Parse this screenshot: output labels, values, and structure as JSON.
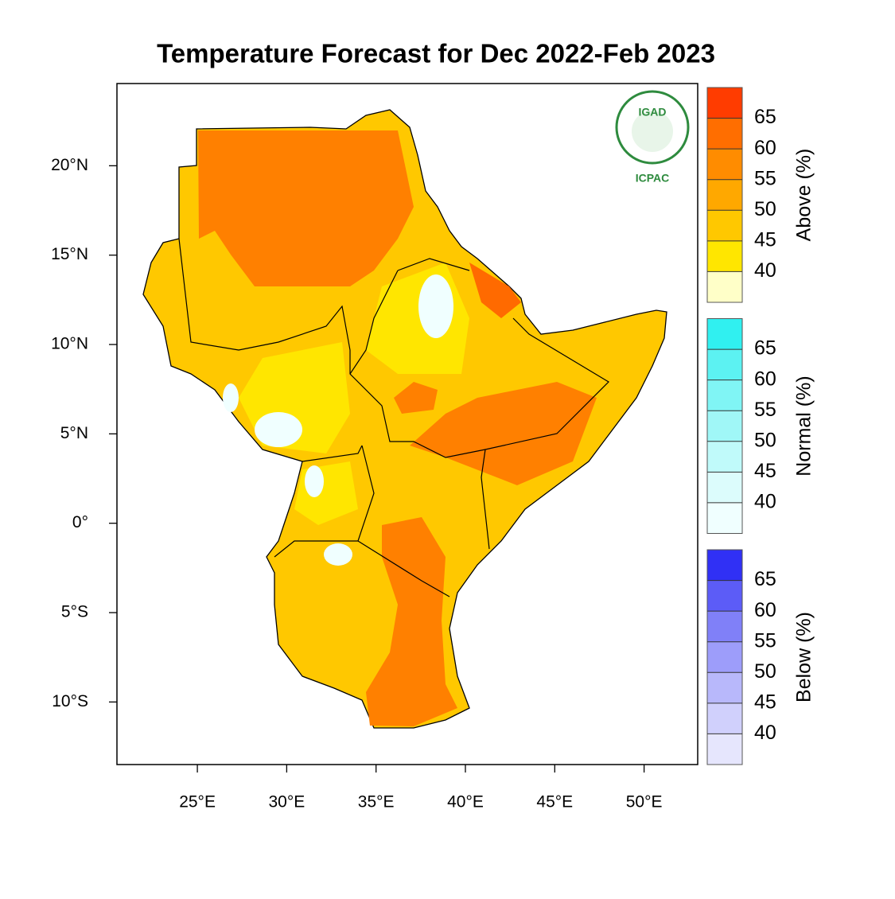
{
  "chart_data": {
    "type": "map",
    "title": "Temperature Forecast for Dec 2022-Feb 2023",
    "xlim": [
      20.5,
      53
    ],
    "ylim": [
      -13.5,
      24.6
    ],
    "xticks": [
      {
        "value": 25,
        "label": "25°E"
      },
      {
        "value": 30,
        "label": "30°E"
      },
      {
        "value": 35,
        "label": "35°E"
      },
      {
        "value": 40,
        "label": "40°E"
      },
      {
        "value": 45,
        "label": "45°E"
      },
      {
        "value": 50,
        "label": "50°E"
      }
    ],
    "yticks": [
      {
        "value": 20,
        "label": "20°N"
      },
      {
        "value": 15,
        "label": "15°N"
      },
      {
        "value": 10,
        "label": "10°N"
      },
      {
        "value": 5,
        "label": "5°N"
      },
      {
        "value": 0,
        "label": "0°"
      },
      {
        "value": -5,
        "label": "5°S"
      },
      {
        "value": -10,
        "label": "10°S"
      }
    ],
    "logo": {
      "top": "IGAD",
      "bottom": "ICPAC"
    },
    "legends": [
      {
        "name": "Above (%)",
        "ticks": [
          40,
          45,
          50,
          55,
          60,
          65
        ],
        "colors": [
          "#ffffc8",
          "#ffe600",
          "#ffc800",
          "#ffa800",
          "#ff8c00",
          "#ff6e00",
          "#ff3c00"
        ]
      },
      {
        "name": "Normal (%)",
        "ticks": [
          40,
          45,
          50,
          55,
          60,
          65
        ],
        "colors": [
          "#f0ffff",
          "#dcfcfc",
          "#c0fafa",
          "#a0f7f7",
          "#80f5f5",
          "#5cf2f2",
          "#30f0f0"
        ]
      },
      {
        "name": "Below (%)",
        "ticks": [
          40,
          45,
          50,
          55,
          60,
          65
        ],
        "colors": [
          "#e6e6fd",
          "#d0d0fc",
          "#b8b8fb",
          "#9d9dfa",
          "#8080f8",
          "#5c5cf7",
          "#3030f5"
        ]
      }
    ]
  }
}
